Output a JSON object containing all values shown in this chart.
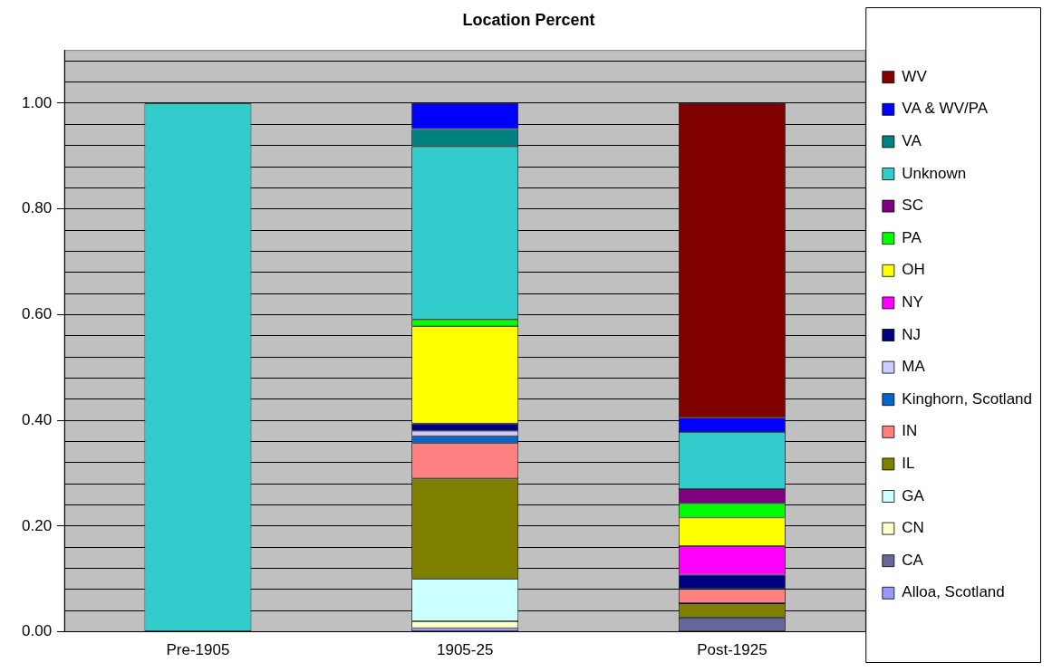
{
  "chart_data": {
    "type": "bar",
    "title": "Location Percent",
    "stacked": true,
    "categories": [
      "Pre-1905",
      "1905-25",
      "Post-1925"
    ],
    "series": [
      {
        "name": "Alloa, Scotland",
        "color": "#9999ff",
        "values": [
          null,
          0.007,
          null
        ]
      },
      {
        "name": "CA",
        "color": "#666699",
        "values": [
          null,
          null,
          0.027
        ]
      },
      {
        "name": "CN",
        "color": "#ffffcc",
        "values": [
          null,
          0.013,
          null
        ]
      },
      {
        "name": "GA",
        "color": "#ccffff",
        "values": [
          null,
          0.08,
          null
        ]
      },
      {
        "name": "IL",
        "color": "#808000",
        "values": [
          null,
          0.19,
          0.027
        ]
      },
      {
        "name": "IN",
        "color": "#ff8080",
        "values": [
          null,
          0.067,
          0.027
        ]
      },
      {
        "name": "Kinghorn, Scotland",
        "color": "#0066cc",
        "values": [
          null,
          0.013,
          null
        ]
      },
      {
        "name": "MA",
        "color": "#ccccff",
        "values": [
          null,
          0.01,
          null
        ]
      },
      {
        "name": "NJ",
        "color": "#000080",
        "values": [
          null,
          0.014,
          0.027
        ]
      },
      {
        "name": "NY",
        "color": "#ff00ff",
        "values": [
          null,
          null,
          0.054
        ]
      },
      {
        "name": "OH",
        "color": "#ffff00",
        "values": [
          null,
          0.184,
          0.054
        ]
      },
      {
        "name": "PA",
        "color": "#00ff00",
        "values": [
          null,
          0.013,
          0.027
        ]
      },
      {
        "name": "SC",
        "color": "#800080",
        "values": [
          null,
          null,
          0.027
        ]
      },
      {
        "name": "Unknown",
        "color": "#33cccc",
        "values": [
          1.0,
          0.327,
          0.108
        ]
      },
      {
        "name": "VA",
        "color": "#008080",
        "values": [
          null,
          0.033,
          null
        ]
      },
      {
        "name": "VA & WV/PA",
        "color": "#0000ff",
        "values": [
          null,
          0.049,
          0.027
        ]
      },
      {
        "name": "WV",
        "color": "#800000",
        "values": [
          null,
          null,
          0.595
        ]
      }
    ],
    "ylim": [
      0,
      1.1
    ],
    "yticks": [
      {
        "value": 0,
        "label": "0.00"
      },
      {
        "value": 0.04,
        "label": null
      },
      {
        "value": 0.08,
        "label": null
      },
      {
        "value": 0.12,
        "label": null
      },
      {
        "value": 0.16,
        "label": null
      },
      {
        "value": 0.2,
        "label": "0.20"
      },
      {
        "value": 0.24,
        "label": null
      },
      {
        "value": 0.28,
        "label": null
      },
      {
        "value": 0.32,
        "label": null
      },
      {
        "value": 0.36,
        "label": null
      },
      {
        "value": 0.4,
        "label": "0.40"
      },
      {
        "value": 0.44,
        "label": null
      },
      {
        "value": 0.48,
        "label": null
      },
      {
        "value": 0.52,
        "label": null
      },
      {
        "value": 0.56,
        "label": null
      },
      {
        "value": 0.6,
        "label": "0.60"
      },
      {
        "value": 0.64,
        "label": null
      },
      {
        "value": 0.68,
        "label": null
      },
      {
        "value": 0.72,
        "label": null
      },
      {
        "value": 0.76,
        "label": null
      },
      {
        "value": 0.8,
        "label": "0.80"
      },
      {
        "value": 0.84,
        "label": null
      },
      {
        "value": 0.88,
        "label": null
      },
      {
        "value": 0.92,
        "label": null
      },
      {
        "value": 0.96,
        "label": null
      },
      {
        "value": 1.0,
        "label": "1.00"
      },
      {
        "value": 1.04,
        "label": null
      },
      {
        "value": 1.08,
        "label": null
      }
    ],
    "grid": "y",
    "legend": "right"
  }
}
